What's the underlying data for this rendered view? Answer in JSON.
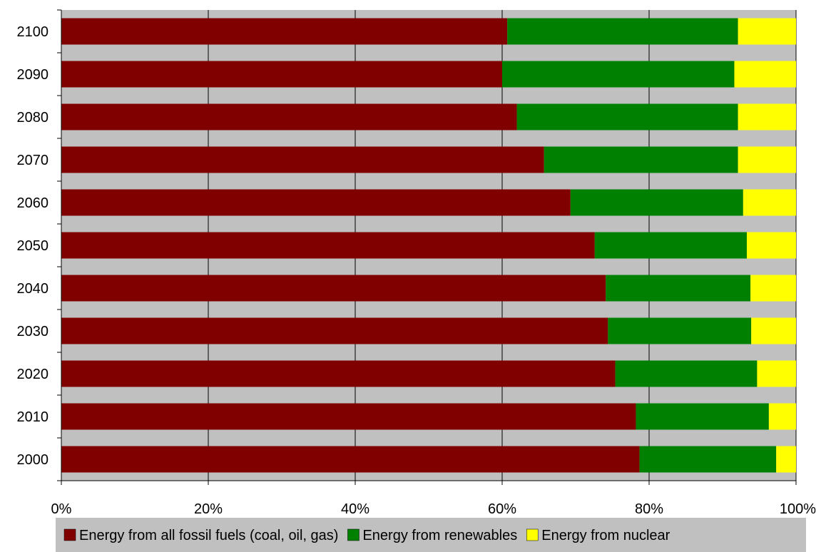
{
  "chart_data": {
    "type": "bar",
    "orientation": "horizontal",
    "stacked": "percent",
    "categories": [
      "2000",
      "2010",
      "2020",
      "2030",
      "2040",
      "2050",
      "2060",
      "2070",
      "2080",
      "2090",
      "2100"
    ],
    "series": [
      {
        "name": "Energy from all fossil fuels (coal, oil, gas)",
        "color": "#800000",
        "values": [
          78.7,
          78.2,
          75.4,
          74.4,
          74.1,
          72.6,
          69.3,
          65.7,
          62.0,
          60.0,
          60.7
        ]
      },
      {
        "name": "Energy from renewables",
        "color": "#008000",
        "values": [
          18.6,
          18.1,
          19.3,
          19.5,
          19.7,
          20.7,
          23.5,
          26.4,
          30.1,
          31.6,
          31.4
        ]
      },
      {
        "name": "Energy from nuclear",
        "color": "#ffff00",
        "values": [
          2.7,
          3.7,
          5.3,
          6.1,
          6.2,
          6.7,
          7.2,
          7.9,
          7.9,
          8.4,
          7.9
        ]
      }
    ],
    "x_ticks": [
      "0%",
      "20%",
      "40%",
      "60%",
      "80%",
      "100%"
    ],
    "xlim": [
      0,
      100
    ],
    "grid": "vertical",
    "legend": "bottom",
    "colors": {
      "plot_background": "#c0c0c0",
      "legend_background": "#c0c0c0",
      "gridline": "#000000"
    }
  }
}
